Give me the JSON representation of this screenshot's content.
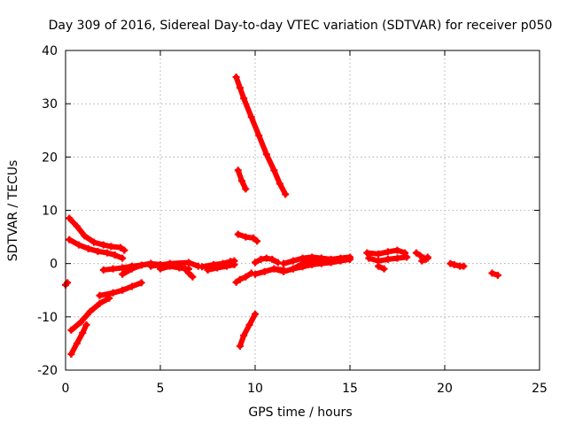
{
  "chart_data": {
    "type": "scatter",
    "title": "Day 309 of 2016, Sidereal Day-to-day VTEC variation (SDTVAR) for receiver p050",
    "xlabel": "GPS time / hours",
    "ylabel": "SDTVAR / TECUs",
    "xlim": [
      0,
      25
    ],
    "ylim": [
      -20,
      40
    ],
    "x_ticks": [
      0,
      5,
      10,
      15,
      20,
      25
    ],
    "y_ticks": [
      -20,
      -10,
      0,
      10,
      20,
      30,
      40
    ],
    "x_tick_labels": [
      "0",
      "5",
      "10",
      "15",
      "20",
      "25"
    ],
    "y_tick_labels": [
      "-20",
      "-10",
      "0",
      "10",
      "20",
      "30",
      "40"
    ],
    "grid": true,
    "marker": "plus",
    "color": "#ff0000",
    "series": [
      {
        "x": [
          0.0,
          0.1
        ],
        "y": [
          -4.0,
          -3.6
        ]
      },
      {
        "x": [
          0.2,
          0.6,
          1.0,
          1.5,
          2.0,
          2.4,
          2.9,
          3.1
        ],
        "y": [
          8.5,
          7.0,
          5.2,
          4.0,
          3.5,
          3.2,
          3.0,
          2.5
        ]
      },
      {
        "x": [
          0.2,
          0.7,
          1.2,
          1.7,
          2.2,
          2.6,
          3.0
        ],
        "y": [
          4.5,
          3.5,
          2.8,
          2.3,
          2.0,
          1.6,
          1.0
        ]
      },
      {
        "x": [
          0.3,
          0.8,
          1.3,
          1.8,
          2.3
        ],
        "y": [
          -12.5,
          -11.0,
          -9.0,
          -7.5,
          -6.5
        ]
      },
      {
        "x": [
          1.8,
          2.5,
          3.0,
          3.5,
          4.0
        ],
        "y": [
          -6.0,
          -5.5,
          -5.0,
          -4.3,
          -3.6
        ]
      },
      {
        "x": [
          0.3,
          0.6,
          0.9,
          1.1
        ],
        "y": [
          -17.0,
          -15.0,
          -13.0,
          -11.5
        ]
      },
      {
        "x": [
          2.0,
          2.5,
          3.0,
          3.5,
          4.0,
          4.5
        ],
        "y": [
          -1.2,
          -1.0,
          -0.8,
          -0.5,
          -0.3,
          0.0
        ]
      },
      {
        "x": [
          3.0,
          3.5,
          4.0,
          4.5,
          5.0
        ],
        "y": [
          -2.0,
          -1.0,
          -0.3,
          0.0,
          -0.2
        ]
      },
      {
        "x": [
          4.5,
          5.5,
          6.5,
          7.0
        ],
        "y": [
          -0.5,
          0.0,
          0.2,
          -0.5
        ]
      },
      {
        "x": [
          5.0,
          5.5,
          6.0,
          6.5
        ],
        "y": [
          -1.0,
          -0.5,
          -0.8,
          -1.0
        ]
      },
      {
        "x": [
          6.3,
          6.5,
          6.7
        ],
        "y": [
          -1.0,
          -1.8,
          -2.5
        ]
      },
      {
        "x": [
          7.2,
          7.8,
          8.3,
          8.7,
          8.9
        ],
        "y": [
          -0.6,
          -0.2,
          0.0,
          0.4,
          0.5
        ]
      },
      {
        "x": [
          7.5,
          8.0,
          8.5,
          8.9
        ],
        "y": [
          -1.2,
          -0.8,
          -0.5,
          -0.2
        ]
      },
      {
        "x": [
          9.0,
          9.2,
          9.4,
          9.8,
          10.2,
          10.6,
          11.0,
          11.3,
          11.6
        ],
        "y": [
          35.0,
          33.0,
          31.0,
          27.5,
          24.0,
          20.5,
          17.5,
          15.0,
          13.0
        ]
      },
      {
        "x": [
          9.1,
          9.3,
          9.5
        ],
        "y": [
          17.5,
          15.5,
          14.0
        ]
      },
      {
        "x": [
          9.1,
          9.5,
          9.9,
          10.1
        ],
        "y": [
          5.5,
          5.0,
          4.8,
          4.2
        ]
      },
      {
        "x": [
          9.0,
          9.2,
          9.5,
          9.8
        ],
        "y": [
          -3.5,
          -3.0,
          -2.5,
          -1.8
        ]
      },
      {
        "x": [
          9.2,
          9.4,
          9.7,
          10.0
        ],
        "y": [
          -15.5,
          -13.5,
          -11.5,
          -9.5
        ]
      },
      {
        "x": [
          10.0,
          10.3,
          10.6,
          10.9,
          11.2
        ],
        "y": [
          0.2,
          0.8,
          1.0,
          0.8,
          0.2
        ]
      },
      {
        "x": [
          10.0,
          10.5,
          11.0,
          11.5
        ],
        "y": [
          -2.0,
          -1.5,
          -1.0,
          -1.2
        ]
      },
      {
        "x": [
          11.0,
          11.5,
          12.0,
          12.5,
          13.0,
          13.5
        ],
        "y": [
          -1.0,
          -1.5,
          -1.0,
          0.0,
          0.5,
          1.0
        ]
      },
      {
        "x": [
          11.5,
          12.0,
          12.5,
          13.0,
          13.5,
          14.0,
          14.5,
          15.0
        ],
        "y": [
          0.0,
          0.5,
          1.0,
          1.2,
          1.0,
          0.8,
          1.0,
          1.2
        ]
      },
      {
        "x": [
          12.0,
          12.5,
          13.0,
          13.5,
          14.0,
          14.5,
          15.0
        ],
        "y": [
          -1.0,
          -0.6,
          -0.2,
          0.0,
          0.2,
          0.5,
          0.8
        ]
      },
      {
        "x": [
          15.9,
          16.5,
          17.0,
          17.5,
          17.9
        ],
        "y": [
          2.0,
          1.8,
          2.2,
          2.5,
          2.0
        ]
      },
      {
        "x": [
          16.0,
          16.5,
          17.0,
          17.5,
          18.0
        ],
        "y": [
          1.0,
          0.5,
          0.8,
          1.0,
          1.2
        ]
      },
      {
        "x": [
          16.5,
          16.8
        ],
        "y": [
          -0.5,
          -1.0
        ]
      },
      {
        "x": [
          18.5,
          18.7,
          18.9,
          19.1
        ],
        "y": [
          2.0,
          1.5,
          1.0,
          1.0
        ]
      },
      {
        "x": [
          18.8,
          19.0,
          19.1
        ],
        "y": [
          0.5,
          0.8,
          1.2
        ]
      },
      {
        "x": [
          20.3,
          20.5,
          20.8,
          21.0
        ],
        "y": [
          0.0,
          -0.2,
          -0.5,
          -0.5
        ]
      },
      {
        "x": [
          22.5,
          22.8
        ],
        "y": [
          -1.8,
          -2.2
        ]
      }
    ]
  }
}
